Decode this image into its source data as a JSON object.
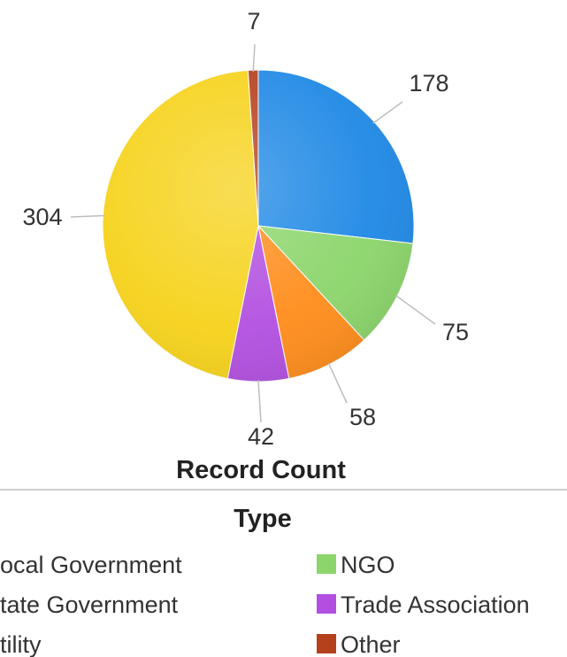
{
  "chart_data": {
    "type": "pie",
    "title": "",
    "value_axis_label": "Record Count",
    "legend_title": "Type",
    "legend_position": "bottom",
    "slices": [
      {
        "label": "Local Government",
        "value": 178,
        "color": "#1e88e5"
      },
      {
        "label": "NGO",
        "value": 75,
        "color": "#8bd56a"
      },
      {
        "label": "State Government",
        "value": 58,
        "color": "#ff8c1a"
      },
      {
        "label": "Trade Association",
        "value": 42,
        "color": "#b24fe0"
      },
      {
        "label": "Utility",
        "value": 304,
        "color": "#f6d21a"
      },
      {
        "label": "Other",
        "value": 7,
        "color": "#b5401c"
      }
    ],
    "legend_visible": [
      {
        "text": "ocal Government",
        "color": "#1e88e5"
      },
      {
        "text": "NGO",
        "color": "#8bd56a"
      },
      {
        "text": "tate Government",
        "color": "#ff8c1a"
      },
      {
        "text": "Trade Association",
        "color": "#b24fe0"
      },
      {
        "text": "tility",
        "color": "#f6d21a"
      },
      {
        "text": "Other",
        "color": "#b5401c"
      }
    ]
  }
}
